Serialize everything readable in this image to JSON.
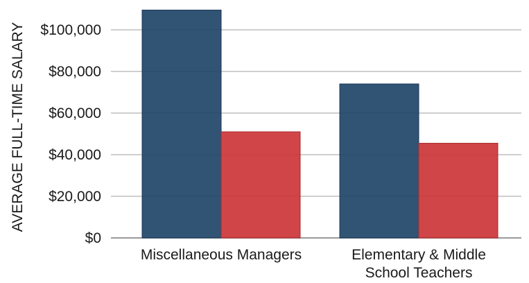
{
  "chart_data": {
    "type": "bar",
    "categories": [
      [
        "Miscellaneous Managers"
      ],
      [
        "Elementary & Middle",
        "School Teachers"
      ]
    ],
    "series": [
      {
        "values": [
          109500,
          74000
        ],
        "color": "#1f4468"
      },
      {
        "values": [
          51000,
          45500
        ],
        "color": "#cc3538"
      }
    ],
    "ylabel": "AVERAGE FULL-TIME SALARY",
    "ylim": [
      0,
      110000
    ],
    "yticks": [
      0,
      20000,
      40000,
      60000,
      80000,
      100000
    ],
    "ytick_labels": [
      "$0",
      "$20,000",
      "$40,000",
      "$60,000",
      "$80,000",
      "$100,000"
    ],
    "grid": true,
    "legend": "none"
  }
}
